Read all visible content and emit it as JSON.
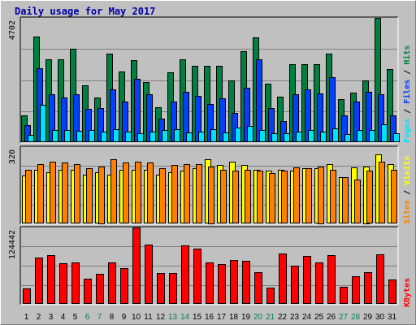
{
  "title": "Daily usage for May 2017",
  "colors": {
    "background": "#C0C0C0",
    "plot_background": "#C0C0C0",
    "grid": "#808080",
    "hits": "#008040",
    "files": "#0040FF",
    "pages": "#00E0FF",
    "visits": "#FFFF00",
    "sites": "#FF8000",
    "kbytes": "#FF0000",
    "separator": "#000000",
    "title": "#0000AA",
    "weekend_label": "#00805C",
    "weekday_label": "#000000"
  },
  "chart_data": [
    {
      "type": "bar",
      "panel": "hits-files-pages",
      "ymax_label": "4702",
      "ylim": [
        0,
        4702
      ],
      "grid": true,
      "categories": [
        "1",
        "2",
        "3",
        "4",
        "5",
        "6",
        "7",
        "8",
        "9",
        "10",
        "11",
        "12",
        "13",
        "14",
        "15",
        "16",
        "17",
        "18",
        "19",
        "20",
        "21",
        "22",
        "23",
        "24",
        "25",
        "26",
        "27",
        "28",
        "29",
        "30",
        "31"
      ],
      "weekend_days": [
        "6",
        "7",
        "13",
        "14",
        "20",
        "21",
        "27",
        "28"
      ],
      "legend": {
        "hits": "Hits",
        "files": "Files",
        "pages": "Pages",
        "separator": " / "
      },
      "series": [
        {
          "name": "Hits",
          "values": [
            1000,
            4000,
            3150,
            3150,
            3520,
            2150,
            1700,
            3360,
            2680,
            3090,
            2270,
            1320,
            2650,
            3150,
            2900,
            2900,
            2900,
            2350,
            3440,
            3960,
            2220,
            1710,
            2950,
            2950,
            2950,
            3340,
            1620,
            1860,
            2350,
            4700,
            2780
          ]
        },
        {
          "name": "Files",
          "values": [
            650,
            2800,
            1800,
            1700,
            1800,
            1250,
            1300,
            2000,
            1550,
            2400,
            1800,
            900,
            1550,
            1900,
            1750,
            1450,
            1650,
            1100,
            2050,
            3150,
            1300,
            800,
            1800,
            2000,
            1850,
            2460,
            1000,
            1550,
            1900,
            1800,
            1000
          ]
        },
        {
          "name": "Pages",
          "values": [
            280,
            1420,
            470,
            450,
            430,
            450,
            400,
            500,
            400,
            350,
            400,
            450,
            480,
            380,
            400,
            500,
            360,
            550,
            630,
            450,
            330,
            350,
            400,
            450,
            400,
            520,
            300,
            450,
            450,
            690,
            330
          ]
        }
      ]
    },
    {
      "type": "bar",
      "panel": "sites-visits",
      "ymax_label": "320",
      "ylim": [
        0,
        320
      ],
      "grid": true,
      "categories": [
        "1",
        "2",
        "3",
        "4",
        "5",
        "6",
        "7",
        "8",
        "9",
        "10",
        "11",
        "12",
        "13",
        "14",
        "15",
        "16",
        "17",
        "18",
        "19",
        "20",
        "21",
        "22",
        "23",
        "24",
        "25",
        "26",
        "27",
        "28",
        "29",
        "30",
        "31"
      ],
      "legend": {
        "visits": "Visits",
        "sites": "Sites",
        "separator": " / "
      },
      "series": [
        {
          "name": "Visits",
          "values": [
            200,
            225,
            215,
            225,
            225,
            205,
            215,
            205,
            225,
            225,
            225,
            205,
            215,
            220,
            230,
            270,
            245,
            260,
            245,
            225,
            220,
            225,
            220,
            230,
            230,
            250,
            195,
            235,
            240,
            290,
            250
          ]
        },
        {
          "name": "Sites",
          "values": [
            225,
            250,
            260,
            255,
            250,
            230,
            240,
            270,
            255,
            260,
            255,
            230,
            245,
            250,
            250,
            240,
            225,
            220,
            225,
            220,
            210,
            220,
            235,
            230,
            240,
            225,
            195,
            185,
            220,
            260,
            225
          ]
        }
      ]
    },
    {
      "type": "bar",
      "panel": "kbytes",
      "ymax_label": "124442",
      "ylim": [
        0,
        124442
      ],
      "grid": true,
      "categories": [
        "1",
        "2",
        "3",
        "4",
        "5",
        "6",
        "7",
        "8",
        "9",
        "10",
        "11",
        "12",
        "13",
        "14",
        "15",
        "16",
        "17",
        "18",
        "19",
        "20",
        "21",
        "22",
        "23",
        "24",
        "25",
        "26",
        "27",
        "28",
        "29",
        "30",
        "31"
      ],
      "legend": {
        "kbytes": "KBytes"
      },
      "series": [
        {
          "name": "KBytes",
          "values": [
            25000,
            75000,
            79000,
            66000,
            67000,
            41000,
            49000,
            68000,
            58000,
            125000,
            97000,
            50000,
            50000,
            95000,
            90000,
            67000,
            65000,
            71000,
            70000,
            52000,
            27000,
            82000,
            62000,
            78000,
            67000,
            79000,
            28000,
            45000,
            51000,
            81000,
            40000
          ]
        }
      ]
    }
  ]
}
